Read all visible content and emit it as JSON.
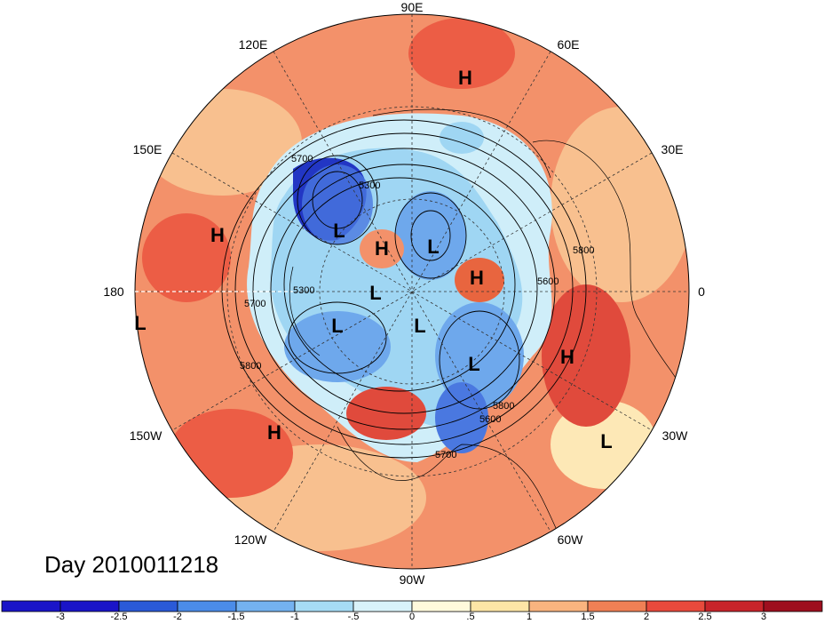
{
  "map": {
    "projection": "north polar stereographic",
    "label_color": "#000000",
    "longitude_labels": [
      {
        "id": "lon-90e",
        "text": "90E"
      },
      {
        "id": "lon-60e",
        "text": "60E"
      },
      {
        "id": "lon-120e",
        "text": "120E"
      },
      {
        "id": "lon-150e",
        "text": "150E"
      },
      {
        "id": "lon-30e",
        "text": "30E"
      },
      {
        "id": "lon-180",
        "text": "180"
      },
      {
        "id": "lon-0",
        "text": "0"
      },
      {
        "id": "lon-150w",
        "text": "150W"
      },
      {
        "id": "lon-30w",
        "text": "30W"
      },
      {
        "id": "lon-120w",
        "text": "120W"
      },
      {
        "id": "lon-60w",
        "text": "60W"
      },
      {
        "id": "lon-90w",
        "text": "90W"
      }
    ],
    "pressure_centers": [
      "H",
      "H",
      "L",
      "H",
      "L",
      "H",
      "L",
      "L",
      "L",
      "L",
      "H",
      "L",
      "H",
      "L"
    ],
    "contour_labels": [
      "5700",
      "5300",
      "5800",
      "5700",
      "5300",
      "5800",
      "5600",
      "5800",
      "5600",
      "5700"
    ],
    "day_label": "Day 2010011218"
  },
  "colorbar": {
    "ticks": [
      "-3",
      "-2.5",
      "-2",
      "-1.5",
      "-1",
      "-.5",
      "0",
      ".5",
      "1",
      "1.5",
      "2",
      "2.5",
      "3"
    ],
    "colors": [
      "#1a14c8",
      "#2a5ad8",
      "#4b8ce8",
      "#74b2f0",
      "#a6dcf5",
      "#d9f3fa",
      "#fffadc",
      "#fde5a6",
      "#f9b47f",
      "#f08055",
      "#e84a3c",
      "#c8242a",
      "#9e0f1e"
    ]
  }
}
